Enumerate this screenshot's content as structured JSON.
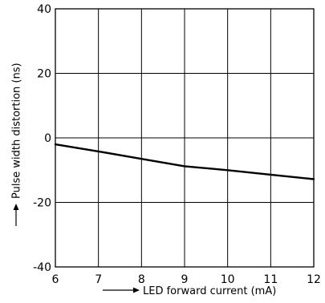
{
  "chart_data": {
    "type": "line",
    "xlabel": "LED forward current (mA)",
    "ylabel": "Pulse width distortion (ns)",
    "xlim": [
      6,
      12
    ],
    "ylim": [
      -40,
      40
    ],
    "xticks": [
      6,
      7,
      8,
      9,
      10,
      11,
      12
    ],
    "yticks": [
      40,
      20,
      0,
      -20,
      -40
    ],
    "ytick_labels": [
      "40",
      "20",
      "0",
      "-20",
      "-40"
    ],
    "grid": true,
    "series": [
      {
        "x": [
          6,
          7,
          8,
          9,
          10,
          11,
          12
        ],
        "values": [
          -2,
          -4.2,
          -6.5,
          -8.8,
          -10,
          -11.4,
          -12.8
        ]
      }
    ]
  }
}
